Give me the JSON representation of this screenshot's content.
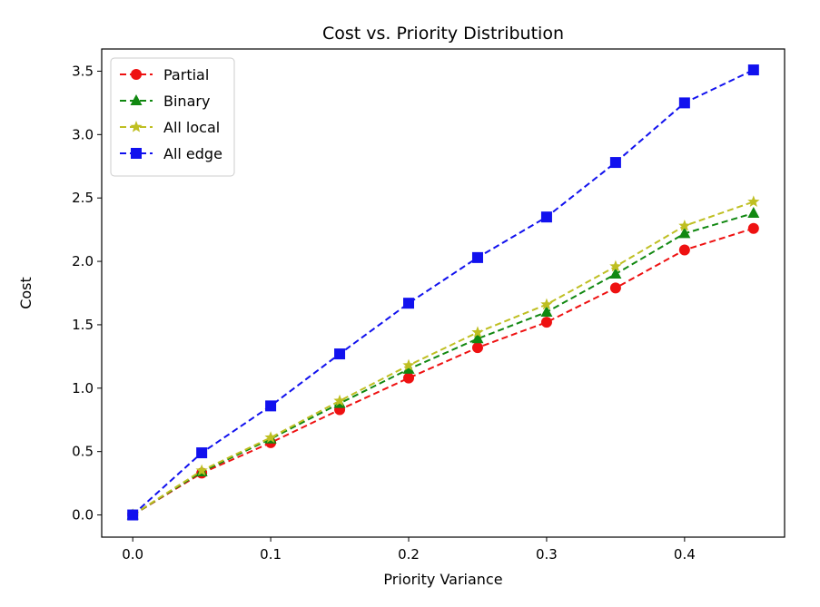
{
  "chart_data": {
    "type": "line",
    "title": "Cost vs. Priority Distribution",
    "xlabel": "Priority Variance",
    "ylabel": "Cost",
    "xlim": [
      -0.0225,
      0.4725
    ],
    "ylim": [
      -0.175,
      3.675
    ],
    "xticks": [
      0.0,
      0.1,
      0.2,
      0.3,
      0.4
    ],
    "xtick_labels": [
      "0.0",
      "0.1",
      "0.2",
      "0.3",
      "0.4"
    ],
    "yticks": [
      0.0,
      0.5,
      1.0,
      1.5,
      2.0,
      2.5,
      3.0,
      3.5
    ],
    "ytick_labels": [
      "0.0",
      "0.5",
      "1.0",
      "1.5",
      "2.0",
      "2.5",
      "3.0",
      "3.5"
    ],
    "grid": false,
    "legend_position": "top-left",
    "x": [
      0.0,
      0.05,
      0.1,
      0.15,
      0.2,
      0.25,
      0.3,
      0.35,
      0.4,
      0.45
    ],
    "series": [
      {
        "name": "Partial",
        "color": "#ee1111",
        "marker": "circle",
        "values": [
          0.0,
          0.33,
          0.57,
          0.83,
          1.08,
          1.32,
          1.52,
          1.79,
          2.09,
          2.26
        ]
      },
      {
        "name": "Binary",
        "color": "#118811",
        "marker": "triangle",
        "values": [
          0.0,
          0.34,
          0.6,
          0.88,
          1.15,
          1.39,
          1.6,
          1.9,
          2.22,
          2.38
        ]
      },
      {
        "name": "All local",
        "color": "#bfbf22",
        "marker": "star",
        "values": [
          0.0,
          0.35,
          0.61,
          0.9,
          1.18,
          1.44,
          1.66,
          1.96,
          2.28,
          2.47
        ]
      },
      {
        "name": "All edge",
        "color": "#1111ee",
        "marker": "square",
        "values": [
          0.0,
          0.49,
          0.86,
          1.27,
          1.67,
          2.03,
          2.35,
          2.78,
          3.25,
          3.51
        ]
      }
    ]
  }
}
